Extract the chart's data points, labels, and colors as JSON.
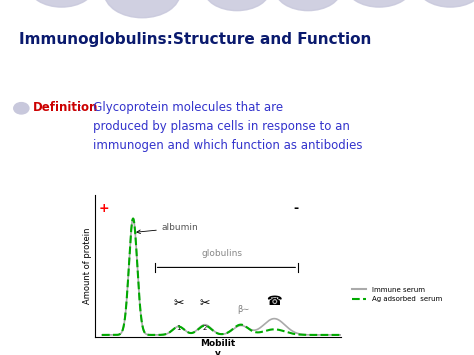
{
  "title": "Immunoglobulins:Structure and Function",
  "title_color": "#0a1a6e",
  "title_fontsize": 11,
  "bullet_word": "Definition",
  "bullet_word_color": "#cc0000",
  "bullet_rest": ":   Glycoprotein molecules that are\n    produced by plasma cells in response to an\n    immunogen and which function as antibodies",
  "bullet_text_color": "#3333cc",
  "bullet_fontsize": 8.5,
  "bg_color": "#ffffff",
  "oval_color": "#c8c8dc",
  "chart_ylabel": "Amount of protein",
  "chart_xlabel": "Mobilit\ny",
  "plus_label": "+",
  "minus_label": "-",
  "albumin_label": "albumin",
  "globulins_label": "globulins",
  "legend_immune": "Immune serum",
  "legend_ag": "Ag adsorbed  serum",
  "immune_color": "#aaaaaa",
  "ag_color": "#00aa00",
  "immune_linewidth": 1.2,
  "ag_linewidth": 1.5
}
